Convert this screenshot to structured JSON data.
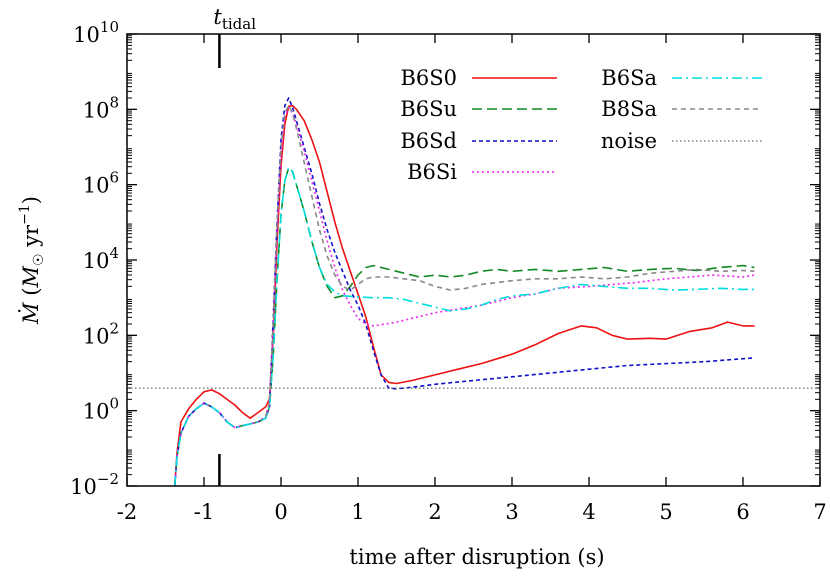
{
  "chart_data": {
    "type": "line",
    "title": "",
    "xlabel": "time after disruption (s)",
    "ylabel": "Ṁ (M☉ yr⁻¹)",
    "ylabel_parts": {
      "base": "Ṁ (",
      "var": "M",
      "sub": "☉",
      "mid": " yr",
      "sup": "−1",
      "end": ")"
    },
    "xlim": [
      -2,
      7
    ],
    "ylim_log10": [
      -2,
      10
    ],
    "yscale": "log",
    "grid": false,
    "legend_position": "top-right",
    "x_ticks": [
      {
        "v": -2,
        "label": "-2"
      },
      {
        "v": -1,
        "label": "-1"
      },
      {
        "v": 0,
        "label": "0"
      },
      {
        "v": 1,
        "label": "1"
      },
      {
        "v": 2,
        "label": "2"
      },
      {
        "v": 3,
        "label": "3"
      },
      {
        "v": 4,
        "label": "4"
      },
      {
        "v": 5,
        "label": "5"
      },
      {
        "v": 6,
        "label": "6"
      },
      {
        "v": 7,
        "label": "7"
      }
    ],
    "y_ticks": [
      {
        "exp": -2,
        "base": "10",
        "sup": "−2"
      },
      {
        "exp": 0,
        "base": "10",
        "sup": "0"
      },
      {
        "exp": 2,
        "base": "10",
        "sup": "2"
      },
      {
        "exp": 4,
        "base": "10",
        "sup": "4"
      },
      {
        "exp": 6,
        "base": "10",
        "sup": "6"
      },
      {
        "exp": 8,
        "base": "10",
        "sup": "8"
      },
      {
        "exp": 10,
        "base": "10",
        "sup": "10"
      }
    ],
    "annotation": {
      "x": -0.8,
      "base": "t",
      "sub": "tidal"
    },
    "series": [
      {
        "name": "B6S0",
        "color": "#ee1111",
        "dash": "solid",
        "points": [
          [
            -1.38,
            -2
          ],
          [
            -1.35,
            -1.1
          ],
          [
            -1.3,
            -0.3
          ],
          [
            -1.2,
            0.05
          ],
          [
            -1.1,
            0.3
          ],
          [
            -1.0,
            0.5
          ],
          [
            -0.9,
            0.55
          ],
          [
            -0.8,
            0.45
          ],
          [
            -0.7,
            0.3
          ],
          [
            -0.6,
            0.15
          ],
          [
            -0.5,
            -0.05
          ],
          [
            -0.4,
            -0.2
          ],
          [
            -0.3,
            -0.05
          ],
          [
            -0.2,
            0.1
          ],
          [
            -0.15,
            0.3
          ],
          [
            -0.1,
            2
          ],
          [
            -0.05,
            4.5
          ],
          [
            0.0,
            6.5
          ],
          [
            0.05,
            7.6
          ],
          [
            0.1,
            8.08
          ],
          [
            0.15,
            8.1
          ],
          [
            0.2,
            8.0
          ],
          [
            0.3,
            7.7
          ],
          [
            0.4,
            7.2
          ],
          [
            0.5,
            6.6
          ],
          [
            0.6,
            5.8
          ],
          [
            0.7,
            5.0
          ],
          [
            0.8,
            4.3
          ],
          [
            0.9,
            3.7
          ],
          [
            1.0,
            3.1
          ],
          [
            1.1,
            2.5
          ],
          [
            1.2,
            1.7
          ],
          [
            1.3,
            0.95
          ],
          [
            1.4,
            0.75
          ],
          [
            1.5,
            0.72
          ],
          [
            1.7,
            0.8
          ],
          [
            2.0,
            0.95
          ],
          [
            2.3,
            1.1
          ],
          [
            2.6,
            1.25
          ],
          [
            3.0,
            1.5
          ],
          [
            3.3,
            1.75
          ],
          [
            3.6,
            2.05
          ],
          [
            3.9,
            2.25
          ],
          [
            4.1,
            2.2
          ],
          [
            4.3,
            2.0
          ],
          [
            4.5,
            1.9
          ],
          [
            4.8,
            1.92
          ],
          [
            5.0,
            1.9
          ],
          [
            5.3,
            2.1
          ],
          [
            5.6,
            2.2
          ],
          [
            5.8,
            2.35
          ],
          [
            6.0,
            2.25
          ],
          [
            6.15,
            2.25
          ]
        ]
      },
      {
        "name": "B6Su",
        "color": "#118822",
        "dash": "10,5",
        "points": [
          [
            -1.38,
            -2
          ],
          [
            -1.35,
            -1.2
          ],
          [
            -1.3,
            -0.6
          ],
          [
            -1.2,
            -0.15
          ],
          [
            -1.1,
            0.05
          ],
          [
            -1.0,
            0.2
          ],
          [
            -0.9,
            0.1
          ],
          [
            -0.8,
            -0.05
          ],
          [
            -0.7,
            -0.3
          ],
          [
            -0.6,
            -0.45
          ],
          [
            -0.5,
            -0.4
          ],
          [
            -0.4,
            -0.35
          ],
          [
            -0.3,
            -0.3
          ],
          [
            -0.2,
            -0.2
          ],
          [
            -0.15,
            0.1
          ],
          [
            -0.1,
            1.5
          ],
          [
            -0.05,
            3.5
          ],
          [
            0.0,
            5.2
          ],
          [
            0.05,
            6.1
          ],
          [
            0.1,
            6.45
          ],
          [
            0.15,
            6.35
          ],
          [
            0.2,
            6.0
          ],
          [
            0.3,
            5.3
          ],
          [
            0.4,
            4.5
          ],
          [
            0.5,
            3.8
          ],
          [
            0.6,
            3.3
          ],
          [
            0.7,
            3.0
          ],
          [
            0.8,
            3.05
          ],
          [
            0.9,
            3.3
          ],
          [
            1.0,
            3.6
          ],
          [
            1.1,
            3.8
          ],
          [
            1.2,
            3.85
          ],
          [
            1.4,
            3.75
          ],
          [
            1.6,
            3.65
          ],
          [
            1.8,
            3.55
          ],
          [
            2.0,
            3.6
          ],
          [
            2.2,
            3.55
          ],
          [
            2.4,
            3.6
          ],
          [
            2.6,
            3.7
          ],
          [
            2.8,
            3.75
          ],
          [
            3.0,
            3.7
          ],
          [
            3.3,
            3.75
          ],
          [
            3.6,
            3.7
          ],
          [
            3.9,
            3.75
          ],
          [
            4.2,
            3.8
          ],
          [
            4.5,
            3.7
          ],
          [
            4.8,
            3.75
          ],
          [
            5.1,
            3.78
          ],
          [
            5.4,
            3.72
          ],
          [
            5.7,
            3.8
          ],
          [
            6.0,
            3.85
          ],
          [
            6.15,
            3.8
          ]
        ]
      },
      {
        "name": "B6Sd",
        "color": "#1111cc",
        "dash": "4,3",
        "points": [
          [
            -1.38,
            -2
          ],
          [
            -1.35,
            -1.2
          ],
          [
            -1.3,
            -0.6
          ],
          [
            -1.2,
            -0.15
          ],
          [
            -1.1,
            0.05
          ],
          [
            -1.0,
            0.2
          ],
          [
            -0.9,
            0.1
          ],
          [
            -0.8,
            -0.05
          ],
          [
            -0.7,
            -0.3
          ],
          [
            -0.6,
            -0.45
          ],
          [
            -0.5,
            -0.4
          ],
          [
            -0.4,
            -0.35
          ],
          [
            -0.3,
            -0.3
          ],
          [
            -0.2,
            -0.2
          ],
          [
            -0.15,
            0.1
          ],
          [
            -0.1,
            2.5
          ],
          [
            -0.05,
            5.0
          ],
          [
            0.0,
            7.2
          ],
          [
            0.05,
            8.1
          ],
          [
            0.1,
            8.3
          ],
          [
            0.15,
            8.05
          ],
          [
            0.2,
            7.7
          ],
          [
            0.3,
            7.0
          ],
          [
            0.4,
            6.3
          ],
          [
            0.5,
            5.5
          ],
          [
            0.6,
            4.8
          ],
          [
            0.7,
            4.2
          ],
          [
            0.8,
            3.7
          ],
          [
            0.9,
            3.2
          ],
          [
            1.0,
            2.8
          ],
          [
            1.1,
            2.3
          ],
          [
            1.2,
            1.6
          ],
          [
            1.3,
            0.95
          ],
          [
            1.4,
            0.6
          ],
          [
            1.5,
            0.58
          ],
          [
            1.7,
            0.62
          ],
          [
            2.0,
            0.7
          ],
          [
            2.5,
            0.8
          ],
          [
            3.0,
            0.9
          ],
          [
            3.5,
            1.0
          ],
          [
            4.0,
            1.1
          ],
          [
            4.5,
            1.2
          ],
          [
            5.0,
            1.25
          ],
          [
            5.5,
            1.3
          ],
          [
            6.0,
            1.38
          ],
          [
            6.15,
            1.4
          ]
        ]
      },
      {
        "name": "B6Si",
        "color": "#ee22ee",
        "dash": "2,3",
        "points": [
          [
            -1.38,
            -2
          ],
          [
            -1.35,
            -1.2
          ],
          [
            -1.3,
            -0.6
          ],
          [
            -1.2,
            -0.15
          ],
          [
            -1.1,
            0.05
          ],
          [
            -1.0,
            0.2
          ],
          [
            -0.9,
            0.1
          ],
          [
            -0.8,
            -0.05
          ],
          [
            -0.7,
            -0.3
          ],
          [
            -0.6,
            -0.45
          ],
          [
            -0.5,
            -0.4
          ],
          [
            -0.4,
            -0.35
          ],
          [
            -0.3,
            -0.3
          ],
          [
            -0.2,
            -0.15
          ],
          [
            -0.15,
            0.2
          ],
          [
            -0.1,
            2.3
          ],
          [
            -0.05,
            4.8
          ],
          [
            0.0,
            6.8
          ],
          [
            0.05,
            7.8
          ],
          [
            0.1,
            8.05
          ],
          [
            0.15,
            7.9
          ],
          [
            0.2,
            7.6
          ],
          [
            0.3,
            6.9
          ],
          [
            0.4,
            6.1
          ],
          [
            0.5,
            5.3
          ],
          [
            0.6,
            4.5
          ],
          [
            0.7,
            3.8
          ],
          [
            0.8,
            3.2
          ],
          [
            0.9,
            2.8
          ],
          [
            1.0,
            2.45
          ],
          [
            1.1,
            2.3
          ],
          [
            1.2,
            2.25
          ],
          [
            1.3,
            2.28
          ],
          [
            1.5,
            2.35
          ],
          [
            1.8,
            2.5
          ],
          [
            2.0,
            2.6
          ],
          [
            2.3,
            2.7
          ],
          [
            2.6,
            2.8
          ],
          [
            3.0,
            3.0
          ],
          [
            3.3,
            3.1
          ],
          [
            3.6,
            3.25
          ],
          [
            4.0,
            3.3
          ],
          [
            4.3,
            3.35
          ],
          [
            4.6,
            3.4
          ],
          [
            5.0,
            3.5
          ],
          [
            5.3,
            3.55
          ],
          [
            5.6,
            3.6
          ],
          [
            6.0,
            3.55
          ],
          [
            6.15,
            3.6
          ]
        ]
      },
      {
        "name": "B6Sa",
        "color": "#00dddd",
        "dash": "10,4,2,4",
        "points": [
          [
            -1.38,
            -2
          ],
          [
            -1.35,
            -1.2
          ],
          [
            -1.3,
            -0.6
          ],
          [
            -1.2,
            -0.15
          ],
          [
            -1.1,
            0.05
          ],
          [
            -1.0,
            0.2
          ],
          [
            -0.9,
            0.1
          ],
          [
            -0.8,
            -0.05
          ],
          [
            -0.7,
            -0.3
          ],
          [
            -0.6,
            -0.45
          ],
          [
            -0.5,
            -0.4
          ],
          [
            -0.4,
            -0.35
          ],
          [
            -0.3,
            -0.3
          ],
          [
            -0.2,
            -0.2
          ],
          [
            -0.15,
            0.1
          ],
          [
            -0.1,
            1.5
          ],
          [
            -0.05,
            3.5
          ],
          [
            0.0,
            5.2
          ],
          [
            0.05,
            6.1
          ],
          [
            0.1,
            6.45
          ],
          [
            0.15,
            6.35
          ],
          [
            0.2,
            6.0
          ],
          [
            0.3,
            5.3
          ],
          [
            0.4,
            4.5
          ],
          [
            0.5,
            3.8
          ],
          [
            0.6,
            3.35
          ],
          [
            0.7,
            3.15
          ],
          [
            0.8,
            3.05
          ],
          [
            1.0,
            3.02
          ],
          [
            1.2,
            3.0
          ],
          [
            1.4,
            3.0
          ],
          [
            1.6,
            2.95
          ],
          [
            1.8,
            2.85
          ],
          [
            2.0,
            2.75
          ],
          [
            2.2,
            2.65
          ],
          [
            2.4,
            2.7
          ],
          [
            2.6,
            2.8
          ],
          [
            2.8,
            2.95
          ],
          [
            3.0,
            3.05
          ],
          [
            3.3,
            3.1
          ],
          [
            3.6,
            3.25
          ],
          [
            3.9,
            3.35
          ],
          [
            4.2,
            3.3
          ],
          [
            4.5,
            3.25
          ],
          [
            4.8,
            3.25
          ],
          [
            5.1,
            3.2
          ],
          [
            5.4,
            3.22
          ],
          [
            5.7,
            3.25
          ],
          [
            6.0,
            3.22
          ],
          [
            6.15,
            3.22
          ]
        ]
      },
      {
        "name": "B8Sa",
        "color": "#888888",
        "dash": "5,4",
        "points": [
          [
            -0.2,
            -0.15
          ],
          [
            -0.15,
            0.2
          ],
          [
            -0.1,
            2.4
          ],
          [
            -0.05,
            5.0
          ],
          [
            0.0,
            7.0
          ],
          [
            0.05,
            7.9
          ],
          [
            0.1,
            8.1
          ],
          [
            0.15,
            7.9
          ],
          [
            0.2,
            7.5
          ],
          [
            0.3,
            6.6
          ],
          [
            0.4,
            5.7
          ],
          [
            0.5,
            4.8
          ],
          [
            0.6,
            4.1
          ],
          [
            0.7,
            3.6
          ],
          [
            0.8,
            3.3
          ],
          [
            0.9,
            3.2
          ],
          [
            1.0,
            3.35
          ],
          [
            1.1,
            3.5
          ],
          [
            1.2,
            3.55
          ],
          [
            1.4,
            3.55
          ],
          [
            1.6,
            3.5
          ],
          [
            1.8,
            3.45
          ],
          [
            2.0,
            3.3
          ],
          [
            2.2,
            3.2
          ],
          [
            2.4,
            3.25
          ],
          [
            2.6,
            3.35
          ],
          [
            2.8,
            3.4
          ],
          [
            3.0,
            3.45
          ],
          [
            3.3,
            3.5
          ],
          [
            3.6,
            3.5
          ],
          [
            3.9,
            3.55
          ],
          [
            4.2,
            3.5
          ],
          [
            4.5,
            3.55
          ],
          [
            4.8,
            3.65
          ],
          [
            5.1,
            3.7
          ],
          [
            5.4,
            3.75
          ],
          [
            5.7,
            3.7
          ],
          [
            6.0,
            3.72
          ],
          [
            6.15,
            3.7
          ]
        ]
      },
      {
        "name": "noise",
        "color": "#666666",
        "dash": "1.5,2.5",
        "points": [
          [
            -2,
            0.6
          ],
          [
            7,
            0.6
          ]
        ]
      }
    ]
  }
}
